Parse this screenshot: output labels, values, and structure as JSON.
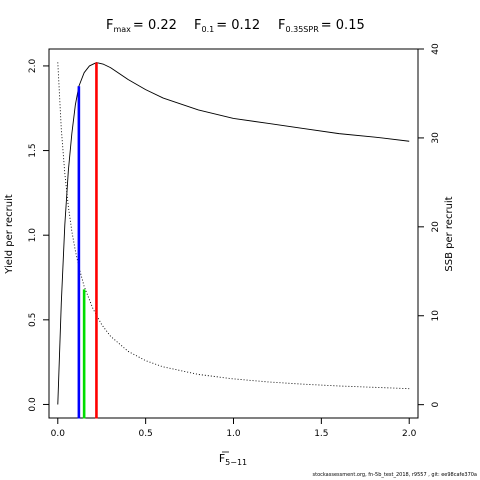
{
  "title": {
    "fmax": {
      "base": "F",
      "sub": "max",
      "value": "= 0.22"
    },
    "f01": {
      "base": "F",
      "sub": "0.1",
      "value": "= 0.12"
    },
    "f035": {
      "base": "F",
      "sub": "0.35SPR",
      "value": "= 0.15"
    }
  },
  "footer": "stockassessment.org, fn-5b_test_2018, r9557 , git: ee98cafe370a",
  "chart_data": {
    "type": "line",
    "xlabel": {
      "base": "F",
      "sub": "5−11"
    },
    "ylabel": "Yield per recruit",
    "y2label": "SSB per recruit",
    "xlim": [
      -0.05,
      2.05
    ],
    "ylim": [
      -0.08,
      2.1
    ],
    "y2lim": [
      -1.5,
      40
    ],
    "xticks": [
      "0.0",
      "0.5",
      "1.0",
      "1.5",
      "2.0"
    ],
    "yticks": [
      "0.0",
      "0.5",
      "1.0",
      "1.5",
      "2.0"
    ],
    "y2ticks": [
      "0",
      "10",
      "20",
      "30",
      "40"
    ],
    "grid": false,
    "series": [
      {
        "axis": "left",
        "style": "solid",
        "color": "#000000",
        "x": [
          0,
          0.02,
          0.04,
          0.06,
          0.08,
          0.1,
          0.12,
          0.15,
          0.18,
          0.22,
          0.26,
          0.3,
          0.4,
          0.5,
          0.6,
          0.8,
          1.0,
          1.2,
          1.4,
          1.6,
          1.8,
          2.0
        ],
        "y": [
          0,
          0.6,
          1.06,
          1.38,
          1.6,
          1.77,
          1.88,
          1.96,
          2.0,
          2.02,
          2.01,
          1.99,
          1.92,
          1.86,
          1.81,
          1.74,
          1.69,
          1.66,
          1.63,
          1.6,
          1.58,
          1.555
        ]
      },
      {
        "axis": "right",
        "style": "dotted",
        "color": "#000000",
        "x": [
          0,
          0.02,
          0.04,
          0.06,
          0.08,
          0.1,
          0.12,
          0.15,
          0.2,
          0.25,
          0.3,
          0.4,
          0.5,
          0.6,
          0.8,
          1.0,
          1.2,
          1.4,
          1.6,
          1.8,
          2.0
        ],
        "y": [
          38.5,
          31,
          26,
          22.3,
          19.5,
          17.3,
          15.5,
          13.3,
          10.8,
          9.0,
          7.7,
          6.0,
          4.95,
          4.25,
          3.4,
          2.9,
          2.55,
          2.3,
          2.1,
          1.95,
          1.8
        ]
      }
    ],
    "reference_lines": [
      {
        "name": "F0.1",
        "x": 0.12,
        "y": 1.88,
        "color": "#0000ff"
      },
      {
        "name": "F0.35SPR",
        "x": 0.15,
        "y": 0.68,
        "color": "#00dd00"
      },
      {
        "name": "Fmax",
        "x": 0.22,
        "y": 2.02,
        "color": "#ff0000"
      }
    ]
  }
}
